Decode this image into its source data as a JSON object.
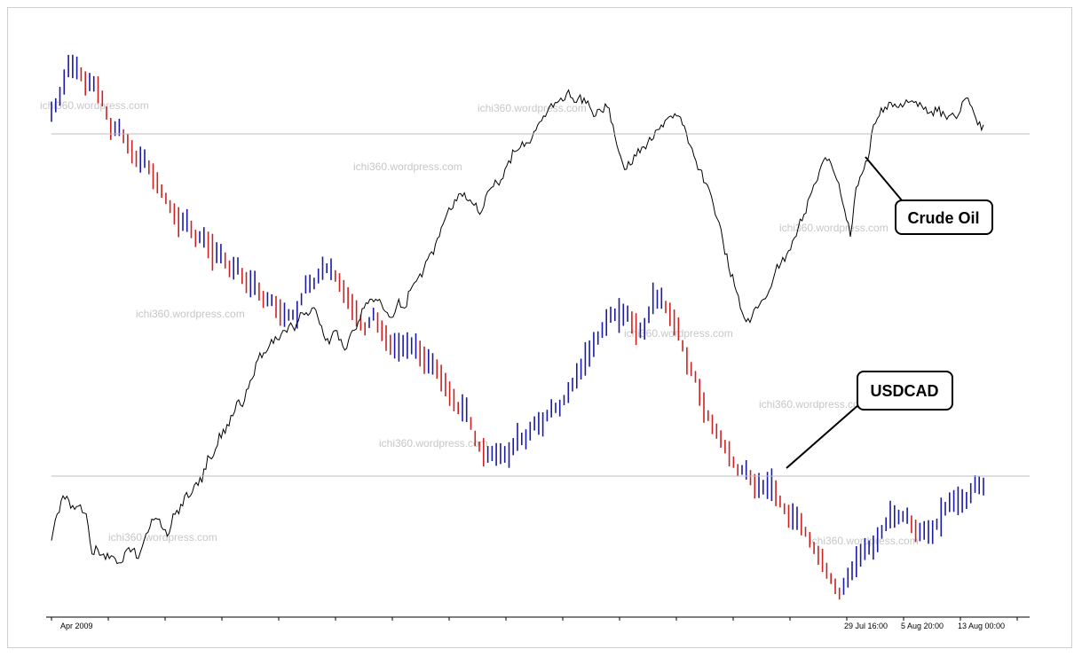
{
  "chart_data": {
    "type": "line",
    "title": "",
    "xlabel": "",
    "ylabel": "",
    "x_tick_labels": [
      "Apr 2009",
      "29 Jul 16:00",
      "5 Aug 20:00",
      "13 Aug 00:00"
    ],
    "series": [
      {
        "name": "Crude Oil",
        "style": "line",
        "color": "#000000",
        "values": [
          0.17,
          0.23,
          0.27,
          0.26,
          0.24,
          0.25,
          0.23,
          0.14,
          0.15,
          0.14,
          0.13,
          0.13,
          0.12,
          0.15,
          0.15,
          0.13,
          0.17,
          0.2,
          0.22,
          0.2,
          0.18,
          0.23,
          0.23,
          0.27,
          0.27,
          0.3,
          0.3,
          0.36,
          0.36,
          0.41,
          0.41,
          0.45,
          0.48,
          0.47,
          0.51,
          0.54,
          0.59,
          0.59,
          0.62,
          0.62,
          0.64,
          0.65,
          0.64,
          0.68,
          0.68,
          0.69,
          0.67,
          0.63,
          0.61,
          0.64,
          0.62,
          0.6,
          0.64,
          0.66,
          0.69,
          0.71,
          0.71,
          0.7,
          0.68,
          0.67,
          0.71,
          0.69,
          0.73,
          0.75,
          0.76,
          0.8,
          0.81,
          0.85,
          0.89,
          0.91,
          0.93,
          0.94,
          0.93,
          0.92,
          0.9,
          0.94,
          0.96,
          0.97,
          0.98,
          1.02,
          1.04,
          1.05,
          1.06,
          1.07,
          1.1,
          1.12,
          1.14,
          1.15,
          1.16,
          1.17,
          1.16,
          1.16,
          1.16,
          1.14,
          1.12,
          1.13,
          1.14,
          1.1,
          1.04,
          1.0,
          1.01,
          1.03,
          1.05,
          1.06,
          1.07,
          1.09,
          1.11,
          1.12,
          1.12,
          1.1,
          1.06,
          1.03,
          1.0,
          0.97,
          0.94,
          0.89,
          0.84,
          0.78,
          0.74,
          0.69,
          0.66,
          0.67,
          0.69,
          0.71,
          0.73,
          0.77,
          0.79,
          0.81,
          0.84,
          0.87,
          0.9,
          0.94,
          0.97,
          1.01,
          1.02,
          1.0,
          0.97,
          0.91,
          0.85,
          0.96,
          0.99,
          1.02,
          1.1,
          1.12,
          1.14,
          1.15,
          1.14,
          1.14,
          1.15,
          1.15,
          1.15,
          1.14,
          1.13,
          1.13,
          1.13,
          1.12,
          1.12,
          1.13,
          1.16,
          1.14,
          1.1,
          1.1
        ]
      },
      {
        "name": "USDCAD",
        "style": "bar",
        "color_up": "#1a1aa6",
        "color_down": "#cc2222",
        "values": [
          1.26,
          1.27,
          1.29,
          1.29,
          1.28,
          1.28,
          1.27,
          1.25,
          1.25,
          1.24,
          1.23,
          1.23,
          1.22,
          1.21,
          1.2,
          1.19,
          1.19,
          1.18,
          1.18,
          1.17,
          1.17,
          1.16,
          1.16,
          1.15,
          1.15,
          1.14,
          1.14,
          1.13,
          1.13,
          1.13,
          1.15,
          1.15,
          1.16,
          1.16,
          1.15,
          1.14,
          1.13,
          1.12,
          1.13,
          1.12,
          1.11,
          1.11,
          1.11,
          1.11,
          1.1,
          1.1,
          1.09,
          1.08,
          1.07,
          1.07,
          1.05,
          1.04,
          1.04,
          1.04,
          1.04,
          1.05,
          1.05,
          1.06,
          1.06,
          1.07,
          1.07,
          1.08,
          1.09,
          1.1,
          1.11,
          1.12,
          1.13,
          1.13,
          1.13,
          1.12,
          1.12,
          1.14,
          1.14,
          1.13,
          1.12,
          1.1,
          1.09,
          1.07,
          1.06,
          1.05,
          1.04,
          1.03,
          1.03,
          1.02,
          1.02,
          1.02,
          1.01,
          1.0,
          1.0,
          0.99,
          0.98,
          0.97,
          0.96,
          0.95,
          0.96,
          0.97,
          0.98,
          0.98,
          0.99,
          1.0,
          1.0,
          1.0,
          0.99,
          0.99,
          0.99,
          1.0,
          1.01,
          1.01,
          1.01,
          1.02,
          1.02
        ]
      }
    ],
    "annotations": [
      {
        "label": "Crude Oil"
      },
      {
        "label": "USDCAD"
      }
    ],
    "watermark": "ichi360.wordpress.com",
    "grid": false,
    "legend": "none"
  }
}
